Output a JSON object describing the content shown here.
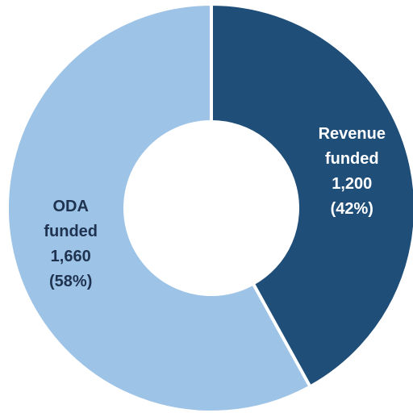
{
  "chart_data": {
    "type": "donut",
    "categories": [
      "Revenue funded",
      "ODA funded"
    ],
    "values": [
      1200,
      1660
    ],
    "value_labels": [
      "1,200",
      "1,660"
    ],
    "percent_labels": [
      "(42%)",
      "(58%)"
    ],
    "colors": [
      "#1f4e79",
      "#9dc3e6"
    ],
    "label_colors": [
      "#ffffff",
      "#1f3350"
    ]
  }
}
